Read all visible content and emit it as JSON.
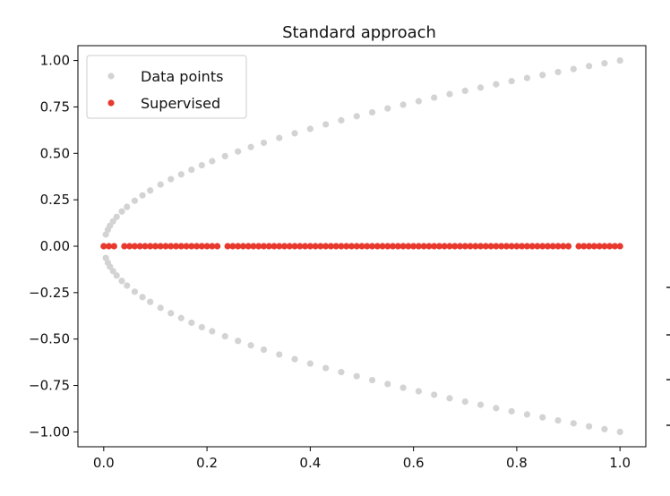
{
  "chart_data": {
    "type": "scatter",
    "title": "Standard approach",
    "xlabel": "",
    "ylabel": "",
    "xlim": [
      -0.05,
      1.05
    ],
    "ylim": [
      -1.08,
      1.08
    ],
    "x_ticks": [
      "0.0",
      "0.2",
      "0.4",
      "0.6",
      "0.8",
      "1.0"
    ],
    "x_tick_values": [
      0.0,
      0.2,
      0.4,
      0.6,
      0.8,
      1.0
    ],
    "y_ticks": [
      "1.00",
      "0.75",
      "0.50",
      "0.25",
      "0.00",
      "−0.25",
      "−0.50",
      "−0.75",
      "−1.00"
    ],
    "y_tick_values": [
      1.0,
      0.75,
      0.5,
      0.25,
      0.0,
      -0.25,
      -0.5,
      -0.75,
      -1.0
    ],
    "grid": false,
    "legend_position": "top-left",
    "series": [
      {
        "name": "Data points",
        "color": "#d3d3d3",
        "relation": "y = ±sqrt(x)",
        "x": [
          0.0,
          0.004,
          0.008,
          0.012,
          0.018,
          0.025,
          0.035,
          0.045,
          0.06,
          0.075,
          0.09,
          0.11,
          0.13,
          0.15,
          0.17,
          0.19,
          0.21,
          0.235,
          0.26,
          0.285,
          0.31,
          0.34,
          0.37,
          0.4,
          0.43,
          0.46,
          0.49,
          0.52,
          0.55,
          0.58,
          0.61,
          0.64,
          0.67,
          0.7,
          0.73,
          0.76,
          0.79,
          0.82,
          0.85,
          0.88,
          0.91,
          0.94,
          0.97,
          1.0
        ],
        "y_positive": [
          0.0,
          0.063,
          0.089,
          0.11,
          0.134,
          0.158,
          0.187,
          0.212,
          0.245,
          0.274,
          0.3,
          0.332,
          0.361,
          0.387,
          0.412,
          0.436,
          0.458,
          0.485,
          0.51,
          0.534,
          0.557,
          0.583,
          0.608,
          0.632,
          0.656,
          0.678,
          0.7,
          0.721,
          0.742,
          0.762,
          0.781,
          0.8,
          0.819,
          0.837,
          0.854,
          0.872,
          0.889,
          0.906,
          0.922,
          0.938,
          0.954,
          0.97,
          0.985,
          1.0
        ],
        "y_negative": [
          0.0,
          -0.063,
          -0.089,
          -0.11,
          -0.134,
          -0.158,
          -0.187,
          -0.212,
          -0.245,
          -0.274,
          -0.3,
          -0.332,
          -0.361,
          -0.387,
          -0.412,
          -0.436,
          -0.458,
          -0.485,
          -0.51,
          -0.534,
          -0.557,
          -0.583,
          -0.608,
          -0.632,
          -0.656,
          -0.678,
          -0.7,
          -0.721,
          -0.742,
          -0.762,
          -0.781,
          -0.8,
          -0.819,
          -0.837,
          -0.854,
          -0.872,
          -0.889,
          -0.906,
          -0.922,
          -0.938,
          -0.954,
          -0.97,
          -0.985,
          -1.0
        ]
      },
      {
        "name": "Supervised",
        "color": "#e8392e",
        "x": [
          0.0,
          0.01,
          0.02,
          0.04,
          0.05,
          0.06,
          0.07,
          0.08,
          0.09,
          0.1,
          0.11,
          0.12,
          0.13,
          0.14,
          0.15,
          0.16,
          0.17,
          0.18,
          0.19,
          0.2,
          0.21,
          0.22,
          0.24,
          0.25,
          0.26,
          0.27,
          0.28,
          0.29,
          0.3,
          0.31,
          0.32,
          0.33,
          0.34,
          0.35,
          0.36,
          0.37,
          0.38,
          0.39,
          0.4,
          0.41,
          0.42,
          0.43,
          0.44,
          0.45,
          0.46,
          0.47,
          0.48,
          0.49,
          0.5,
          0.51,
          0.52,
          0.53,
          0.54,
          0.55,
          0.56,
          0.57,
          0.58,
          0.59,
          0.6,
          0.61,
          0.62,
          0.63,
          0.64,
          0.65,
          0.66,
          0.67,
          0.68,
          0.69,
          0.7,
          0.71,
          0.72,
          0.73,
          0.74,
          0.75,
          0.76,
          0.77,
          0.78,
          0.79,
          0.8,
          0.81,
          0.82,
          0.83,
          0.84,
          0.85,
          0.86,
          0.87,
          0.88,
          0.89,
          0.9,
          0.92,
          0.93,
          0.94,
          0.95,
          0.96,
          0.97,
          0.98,
          0.99,
          1.0
        ],
        "y": 0.0
      }
    ]
  }
}
